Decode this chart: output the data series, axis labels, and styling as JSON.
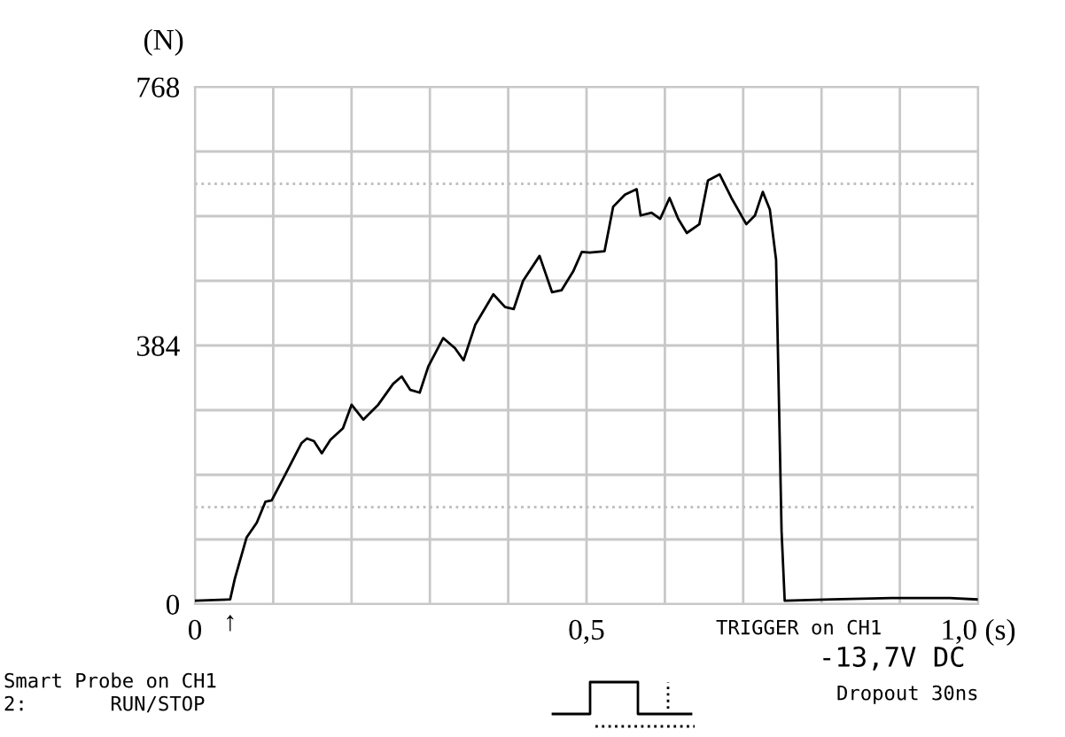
{
  "chart_data": {
    "type": "line",
    "ylabel": "(N)",
    "x": [
      0,
      0.045,
      0.051,
      0.066,
      0.079,
      0.09,
      0.098,
      0.117,
      0.136,
      0.143,
      0.152,
      0.162,
      0.173,
      0.189,
      0.2,
      0.215,
      0.234,
      0.253,
      0.264,
      0.275,
      0.287,
      0.298,
      0.317,
      0.332,
      0.343,
      0.358,
      0.381,
      0.396,
      0.407,
      0.419,
      0.44,
      0.456,
      0.468,
      0.483,
      0.494,
      0.504,
      0.523,
      0.534,
      0.549,
      0.564,
      0.569,
      0.583,
      0.594,
      0.606,
      0.617,
      0.628,
      0.644,
      0.655,
      0.67,
      0.685,
      0.704,
      0.715,
      0.725,
      0.734,
      0.742,
      0.749,
      0.753,
      0.813,
      0.889,
      0.964,
      0.998
    ],
    "series": [
      {
        "color": "#000000",
        "values": [
          5,
          7,
          38,
          99,
          121,
          152,
          154,
          196,
          239,
          246,
          242,
          224,
          244,
          261,
          296,
          274,
          296,
          327,
          338,
          318,
          314,
          353,
          395,
          380,
          362,
          415,
          460,
          441,
          438,
          480,
          517,
          463,
          466,
          494,
          523,
          522,
          524,
          590,
          608,
          616,
          577,
          581,
          572,
          603,
          572,
          551,
          564,
          629,
          638,
          603,
          564,
          577,
          612,
          586,
          511,
          108,
          5,
          7,
          9,
          9,
          7
        ]
      }
    ],
    "xlim": [
      0,
      1.0
    ],
    "ylim": [
      0,
      768
    ],
    "xticks": [
      0,
      {
        "value": 0.1,
        "label": null
      },
      {
        "value": 0.2,
        "label": null
      },
      {
        "value": 0.3,
        "label": null
      },
      {
        "value": 0.4,
        "label": null
      },
      {
        "value": 0.5,
        "label": "0,5"
      },
      {
        "value": 0.6,
        "label": null
      },
      {
        "value": 0.7,
        "label": null
      },
      {
        "value": 0.8,
        "label": null
      },
      {
        "value": 0.9,
        "label": null
      },
      {
        "value": 1.0,
        "label": "1,0 (s)"
      }
    ],
    "yticks": [
      0,
      {
        "value": 96,
        "label": null
      },
      {
        "value": 192,
        "label": null
      },
      {
        "value": 288,
        "label": null
      },
      384,
      {
        "value": 480,
        "label": null
      },
      {
        "value": 576,
        "label": null
      },
      {
        "value": 672,
        "label": null
      },
      768
    ],
    "grid": true,
    "marker": "none",
    "line_style": "solid",
    "legend": false,
    "ref_lines": [
      {
        "axis": "y",
        "value": 144,
        "color": "#c0c0c0",
        "line_style": "dotted"
      },
      {
        "axis": "y",
        "value": 624,
        "color": "#c0c0c0",
        "line_style": "dotted"
      }
    ],
    "annotations": [
      {
        "text": "↑",
        "x": 0.045,
        "y": 0
      },
      "TRIGGER on CH1",
      "-13,7V DC",
      "Dropout 30ns",
      "Smart Probe on CH1",
      "2:       RUN/STOP"
    ]
  }
}
